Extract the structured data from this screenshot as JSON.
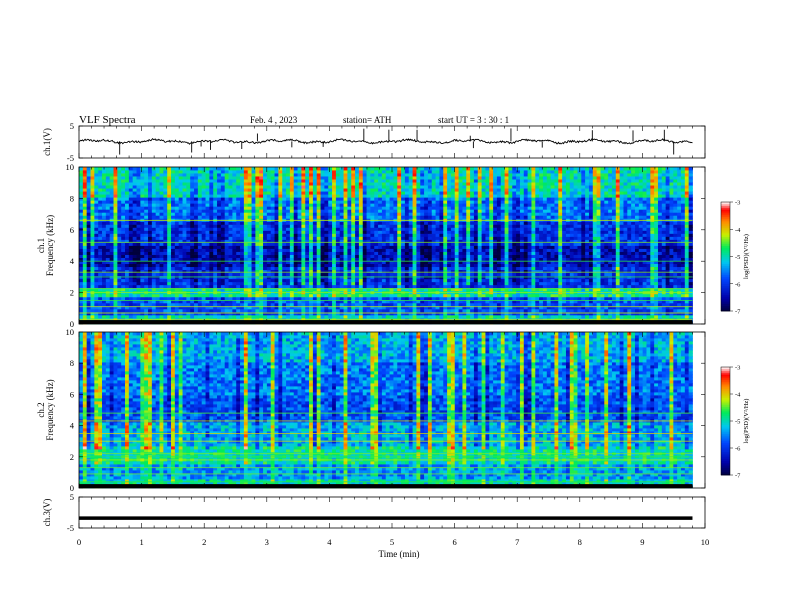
{
  "header": {
    "title": "VLF  Spectra",
    "date": "Feb. 4  , 2023",
    "station": "station= ATH",
    "start": "start  UT  =   3  : 30 : 1"
  },
  "chart_data": [
    {
      "id": "ch1-waveform",
      "type": "line",
      "ylabel": "ch.1(V)",
      "xlim": [
        0,
        10
      ],
      "ylim": [
        -5,
        5
      ],
      "y_ticks": [
        "5",
        "-5"
      ],
      "data_extent_min": 9.8,
      "baseline_v": 0.2,
      "color": "#000000",
      "spike_times_min": [
        0.65,
        1.8,
        1.95,
        2.1,
        2.6,
        2.85,
        3.4,
        3.9,
        4.55,
        4.95,
        5.4,
        6.25,
        6.3,
        6.9,
        7.4,
        8.2,
        8.85,
        9.35,
        9.5
      ]
    },
    {
      "id": "ch1-spectrogram",
      "type": "heatmap",
      "ylabel": "ch.1\nFrequency  (kHz)",
      "xlim": [
        0,
        10
      ],
      "ylim": [
        0,
        10
      ],
      "y_ticks": [
        "0",
        "2",
        "4",
        "6",
        "8",
        "10"
      ],
      "data_extent_min": 9.8,
      "bands_khz": [
        {
          "range": [
            8,
            10
          ],
          "level": -5.0
        },
        {
          "range": [
            6.5,
            8
          ],
          "level": -5.6
        },
        {
          "range": [
            5,
            6.5
          ],
          "level": -6.0
        },
        {
          "range": [
            3.6,
            5
          ],
          "level": -6.4
        },
        {
          "range": [
            2.4,
            3.6
          ],
          "level": -6.0
        },
        {
          "range": [
            1.8,
            2.4
          ],
          "level": -4.8
        },
        {
          "range": [
            0.6,
            1.8
          ],
          "level": -5.8
        },
        {
          "range": [
            0,
            0.6
          ],
          "level": -5.0
        }
      ],
      "lines_khz": [
        0.3,
        0.7,
        1.1,
        1.5,
        2.0,
        2.25,
        3.0,
        3.3,
        4.0,
        5.2,
        6.6
      ],
      "colorbar": {
        "label": "log(PSD)(V²/Hz)",
        "range": [
          -7,
          -3
        ],
        "ticks": [
          "-3",
          "-4",
          "-5",
          "-6",
          "-7"
        ]
      }
    },
    {
      "id": "ch2-spectrogram",
      "type": "heatmap",
      "ylabel": "ch.2\nFrequency  (kHz)",
      "xlim": [
        0,
        10
      ],
      "ylim": [
        0,
        10
      ],
      "y_ticks": [
        "0",
        "2",
        "4",
        "6",
        "8",
        "10"
      ],
      "data_extent_min": 9.8,
      "bands_khz": [
        {
          "range": [
            8,
            10
          ],
          "level": -5.3
        },
        {
          "range": [
            6,
            8
          ],
          "level": -5.6
        },
        {
          "range": [
            4.2,
            6
          ],
          "level": -5.8
        },
        {
          "range": [
            2.6,
            4.2
          ],
          "level": -5.3
        },
        {
          "range": [
            1.6,
            2.6
          ],
          "level": -4.9
        },
        {
          "range": [
            0.5,
            1.6
          ],
          "level": -5.4
        },
        {
          "range": [
            0,
            0.5
          ],
          "level": -5.0
        }
      ],
      "lines_khz": [
        0.4,
        0.9,
        1.3,
        1.8,
        2.0,
        2.2,
        3.0,
        3.5,
        4.3,
        4.8
      ],
      "colorbar": {
        "label": "log(PSD)(V²/Hz)",
        "range": [
          -7,
          -3
        ],
        "ticks": [
          "-3",
          "-4",
          "-5",
          "-6",
          "-7"
        ]
      }
    },
    {
      "id": "ch3-waveform",
      "type": "line",
      "ylabel": "ch.3(V)",
      "xlim": [
        0,
        10
      ],
      "ylim": [
        -5,
        5
      ],
      "y_ticks": [
        "5",
        "-5"
      ],
      "data_extent_min": 9.8,
      "baseline_v": -1.8,
      "color": "#000000"
    }
  ],
  "x_axis": {
    "label": "Time  (min)",
    "ticks": [
      "0",
      "1",
      "2",
      "3",
      "4",
      "5",
      "6",
      "7",
      "8",
      "9",
      "10"
    ]
  }
}
